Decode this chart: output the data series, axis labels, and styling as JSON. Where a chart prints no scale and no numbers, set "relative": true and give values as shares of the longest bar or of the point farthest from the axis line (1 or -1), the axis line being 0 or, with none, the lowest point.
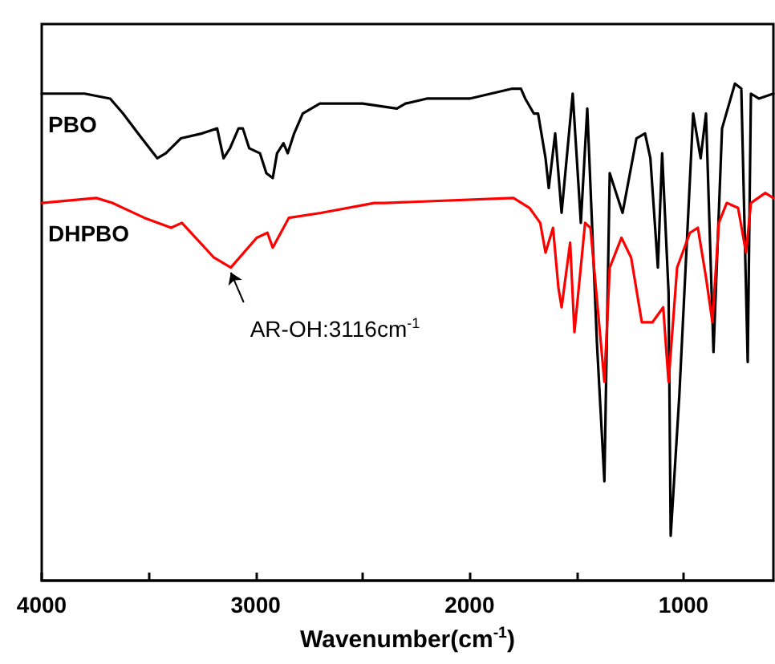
{
  "chart_data": {
    "type": "line",
    "relative": true,
    "xlabel": "Wavenumber(cm$^{-1}$)",
    "xlim": [
      4000,
      580
    ],
    "xticks": [
      4000,
      {
        "value": 3500,
        "label": null
      },
      3000,
      {
        "value": 2500,
        "label": null
      },
      2000,
      {
        "value": 1500,
        "label": null
      },
      1000
    ],
    "legend": false,
    "grid": false,
    "line_style": "solid",
    "annotations": [
      {
        "text": "AR-OH:3116cm$^{-1}$",
        "x": 3116,
        "y": 0.63
      }
    ],
    "series": [
      {
        "name": "PBO",
        "color": "#000000",
        "x": [
          4000,
          3800,
          3680,
          3620,
          3550,
          3460,
          3420,
          3350,
          3250,
          3180,
          3150,
          3120,
          3080,
          3060,
          3030,
          2980,
          2950,
          2920,
          2900,
          2870,
          2850,
          2820,
          2780,
          2700,
          2600,
          2500,
          2340,
          2300,
          2200,
          2000,
          1900,
          1800,
          1760,
          1740,
          1700,
          1680,
          1645,
          1630,
          1600,
          1570,
          1518,
          1480,
          1450,
          1405,
          1370,
          1345,
          1285,
          1220,
          1180,
          1155,
          1120,
          1100,
          1070,
          1060,
          1020,
          955,
          920,
          895,
          860,
          820,
          760,
          730,
          700,
          685,
          648,
          580
        ],
        "values": [
          0.98,
          0.98,
          0.97,
          0.94,
          0.9,
          0.85,
          0.86,
          0.89,
          0.9,
          0.91,
          0.85,
          0.87,
          0.91,
          0.91,
          0.87,
          0.86,
          0.82,
          0.81,
          0.86,
          0.88,
          0.86,
          0.9,
          0.94,
          0.96,
          0.96,
          0.96,
          0.95,
          0.96,
          0.97,
          0.97,
          0.98,
          0.99,
          0.99,
          0.97,
          0.94,
          0.94,
          0.85,
          0.79,
          0.9,
          0.74,
          0.98,
          0.72,
          0.95,
          0.48,
          0.2,
          0.82,
          0.74,
          0.89,
          0.9,
          0.85,
          0.63,
          0.86,
          0.58,
          0.09,
          0.37,
          0.94,
          0.85,
          0.94,
          0.46,
          0.91,
          1.0,
          0.99,
          0.44,
          0.98,
          0.97,
          0.98
        ]
      },
      {
        "name": "DHPBO",
        "color": "#ff0000",
        "x": [
          4000,
          3745,
          3670,
          3520,
          3395,
          3345,
          3195,
          3116,
          2995,
          2945,
          2920,
          2845,
          2695,
          2445,
          2395,
          1795,
          1720,
          1670,
          1645,
          1610,
          1585,
          1570,
          1530,
          1510,
          1460,
          1435,
          1370,
          1345,
          1290,
          1245,
          1195,
          1145,
          1095,
          1070,
          1030,
          970,
          933,
          895,
          865,
          835,
          798,
          745,
          708,
          685,
          618,
          580
        ],
        "values": [
          0.76,
          0.77,
          0.76,
          0.73,
          0.71,
          0.72,
          0.65,
          0.63,
          0.69,
          0.7,
          0.67,
          0.73,
          0.74,
          0.76,
          0.76,
          0.77,
          0.75,
          0.72,
          0.66,
          0.71,
          0.59,
          0.55,
          0.68,
          0.5,
          0.72,
          0.71,
          0.4,
          0.63,
          0.69,
          0.65,
          0.52,
          0.52,
          0.55,
          0.4,
          0.63,
          0.7,
          0.71,
          0.61,
          0.52,
          0.72,
          0.76,
          0.75,
          0.66,
          0.76,
          0.78,
          0.77
        ]
      }
    ]
  }
}
